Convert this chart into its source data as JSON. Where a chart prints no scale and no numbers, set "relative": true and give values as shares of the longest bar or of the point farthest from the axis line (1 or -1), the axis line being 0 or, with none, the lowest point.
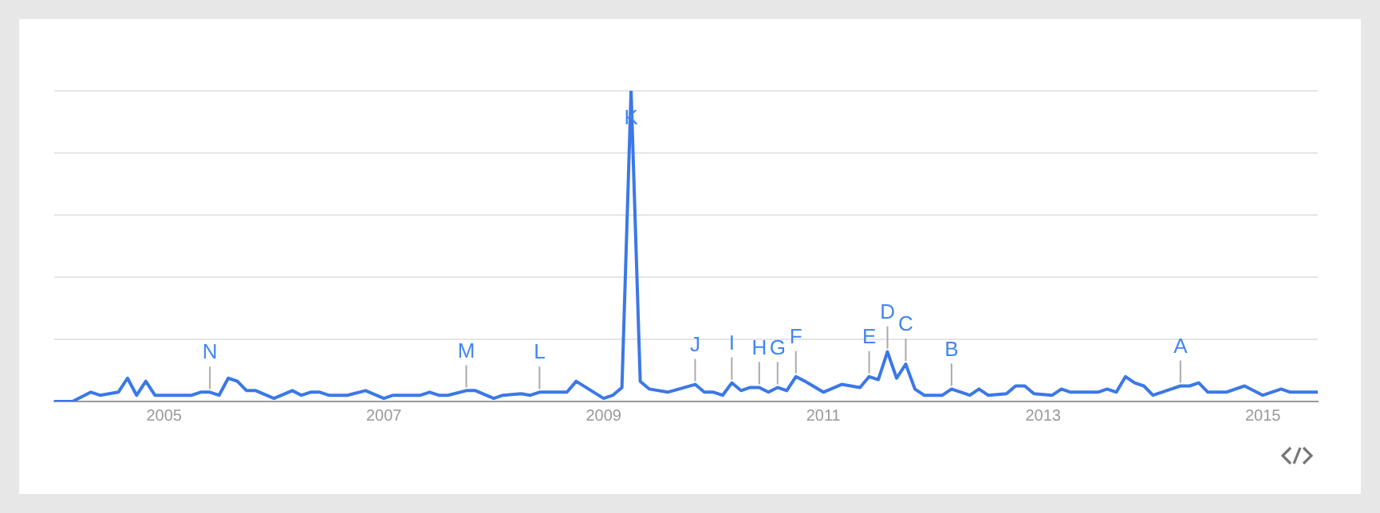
{
  "chart_data": {
    "type": "line",
    "relative": true,
    "grid": "y",
    "marker": "none",
    "line_style": "solid",
    "xlim": [
      "2004-01",
      "2015-07"
    ],
    "xticks": [
      "2005",
      "2007",
      "2009",
      "2011",
      "2013",
      "2015"
    ],
    "series": [
      {
        "color": "#3b78e7",
        "x": [
          "2004-01",
          "2004-03",
          "2004-05",
          "2004-06",
          "2004-08",
          "2004-09",
          "2004-10",
          "2004-11",
          "2004-12",
          "2005-04",
          "2005-05",
          "2005-06",
          "2005-07",
          "2005-08",
          "2005-09",
          "2005-10",
          "2005-11",
          "2006-01",
          "2006-03",
          "2006-04",
          "2006-05",
          "2006-06",
          "2006-07",
          "2006-09",
          "2006-11",
          "2007-01",
          "2007-02",
          "2007-05",
          "2007-06",
          "2007-07",
          "2007-08",
          "2007-10",
          "2007-11",
          "2008-01",
          "2008-02",
          "2008-04",
          "2008-05",
          "2008-06",
          "2008-09",
          "2008-10",
          "2009-01",
          "2009-02",
          "2009-03",
          "2009-04",
          "2009-05",
          "2009-06",
          "2009-08",
          "2009-11",
          "2009-12",
          "2010-01",
          "2010-02",
          "2010-03",
          "2010-04",
          "2010-05",
          "2010-06",
          "2010-07",
          "2010-08",
          "2010-09",
          "2010-10",
          "2010-11",
          "2011-01",
          "2011-03",
          "2011-05",
          "2011-06",
          "2011-07",
          "2011-08",
          "2011-09",
          "2011-10",
          "2011-11",
          "2011-12",
          "2012-02",
          "2012-03",
          "2012-05",
          "2012-06",
          "2012-07",
          "2012-09",
          "2012-10",
          "2012-11",
          "2012-12",
          "2013-02",
          "2013-03",
          "2013-04",
          "2013-07",
          "2013-08",
          "2013-09",
          "2013-10",
          "2013-11",
          "2013-12",
          "2014-01",
          "2014-03",
          "2014-04",
          "2014-05",
          "2014-06",
          "2014-07",
          "2014-09",
          "2014-11",
          "2015-01",
          "2015-03",
          "2015-04",
          "2015-07"
        ],
        "values": [
          0,
          0,
          0.03,
          0.02,
          0.03,
          0.075,
          0.02,
          0.065,
          0.02,
          0.02,
          0.03,
          0.03,
          0.02,
          0.075,
          0.065,
          0.035,
          0.035,
          0.01,
          0.035,
          0.02,
          0.03,
          0.03,
          0.02,
          0.02,
          0.035,
          0.01,
          0.02,
          0.02,
          0.03,
          0.02,
          0.02,
          0.035,
          0.035,
          0.01,
          0.02,
          0.025,
          0.02,
          0.03,
          0.03,
          0.065,
          0.01,
          0.02,
          0.045,
          1,
          0.065,
          0.04,
          0.03,
          0.055,
          0.03,
          0.03,
          0.02,
          0.06,
          0.035,
          0.045,
          0.045,
          0.03,
          0.045,
          0.035,
          0.08,
          0.065,
          0.03,
          0.055,
          0.045,
          0.08,
          0.07,
          0.16,
          0.075,
          0.12,
          0.04,
          0.02,
          0.02,
          0.04,
          0.02,
          0.04,
          0.02,
          0.025,
          0.05,
          0.05,
          0.025,
          0.02,
          0.04,
          0.03,
          0.03,
          0.04,
          0.03,
          0.08,
          0.06,
          0.05,
          0.02,
          0.04,
          0.05,
          0.05,
          0.06,
          0.03,
          0.03,
          0.05,
          0.02,
          0.04,
          0.03,
          0.03
        ]
      }
    ],
    "annotations": [
      {
        "text": "N",
        "x": "2005-06",
        "y": 0.03
      },
      {
        "text": "M",
        "x": "2007-10",
        "y": 0.035
      },
      {
        "text": "L",
        "x": "2008-06",
        "y": 0.03
      },
      {
        "text": "K",
        "x": "2009-04",
        "y": 1
      },
      {
        "text": "J",
        "x": "2009-11",
        "y": 0.055
      },
      {
        "text": "I",
        "x": "2010-03",
        "y": 0.06
      },
      {
        "text": "H",
        "x": "2010-06",
        "y": 0.045
      },
      {
        "text": "G",
        "x": "2010-08",
        "y": 0.045
      },
      {
        "text": "F",
        "x": "2010-10",
        "y": 0.08
      },
      {
        "text": "E",
        "x": "2011-06",
        "y": 0.08
      },
      {
        "text": "D",
        "x": "2011-08",
        "y": 0.16
      },
      {
        "text": "C",
        "x": "2011-10",
        "y": 0.12
      },
      {
        "text": "B",
        "x": "2012-03",
        "y": 0.04
      },
      {
        "text": "A",
        "x": "2014-04",
        "y": 0.05
      }
    ]
  }
}
